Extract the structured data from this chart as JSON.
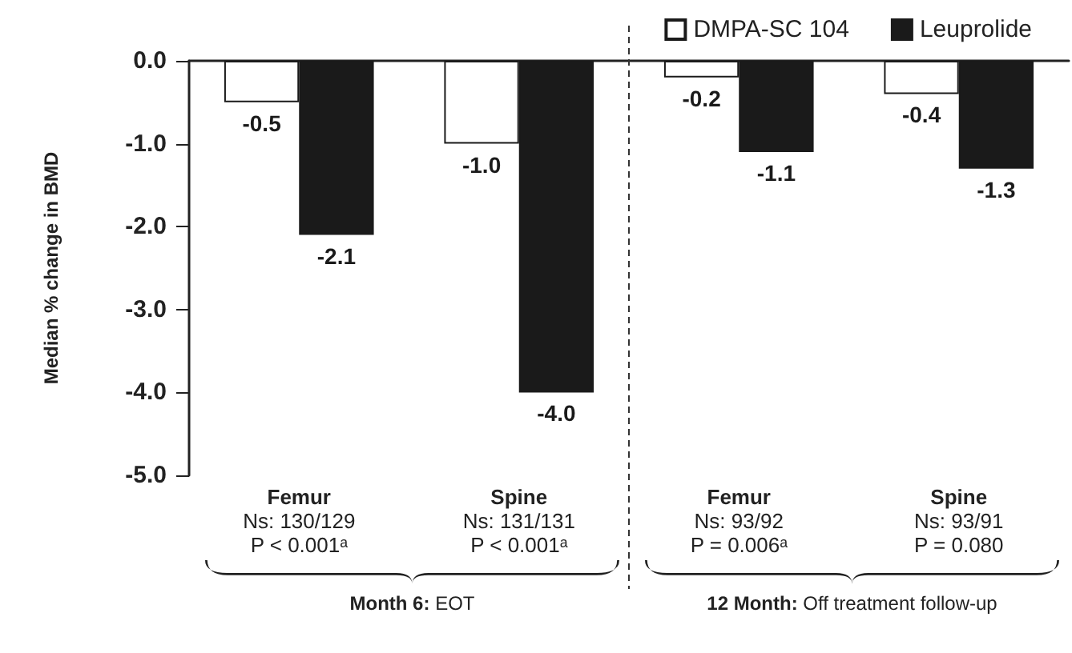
{
  "chart_data": {
    "type": "bar",
    "ylabel": "Median % change in BMD",
    "categories": [
      "Femur\nNs: 130/129\nP < 0.001ᵃ",
      "Spine\nNs: 131/131\nP < 0.001ᵃ",
      "Femur\nNs: 93/92\nP = 0.006ᵃ",
      "Spine\nNs: 93/91\nP = 0.080"
    ],
    "series": [
      {
        "name": "DMPA-SC 104",
        "color": "#ffffff",
        "values": [
          -0.5,
          -1.0,
          -0.2,
          -0.4
        ],
        "value_labels": [
          "-0.5",
          "-1.0",
          "-0.2",
          "-0.4"
        ]
      },
      {
        "name": "Leuprolide",
        "color": "#1a1a1a",
        "values": [
          -2.1,
          -4.0,
          -1.1,
          -1.3
        ],
        "value_labels": [
          "-2.1",
          "-4.0",
          "-1.1",
          "-1.3"
        ]
      }
    ],
    "ylim": [
      -5,
      0
    ],
    "yticks": [
      {
        "value": -5,
        "label": "-5.0"
      },
      {
        "value": -4,
        "label": "-4.0"
      },
      {
        "value": -3,
        "label": "-3.0"
      },
      {
        "value": -2,
        "label": "-2.0"
      },
      {
        "value": -1,
        "label": "-1.0"
      },
      {
        "value": 0,
        "label": "0.0"
      }
    ],
    "annotations": [
      "Month 6: EOT",
      "12 Month: Off treatment follow-up"
    ],
    "grid": false,
    "legend": "top right"
  }
}
